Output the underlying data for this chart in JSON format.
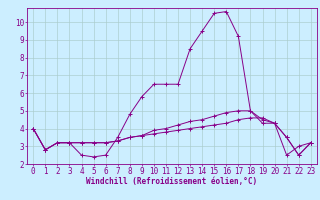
{
  "title": "",
  "xlabel": "Windchill (Refroidissement éolien,°C)",
  "ylabel": "",
  "bg_color": "#cceeff",
  "line_color": "#880088",
  "grid_color": "#aaddcc",
  "xlim": [
    -0.5,
    23.5
  ],
  "ylim": [
    2.0,
    10.8
  ],
  "yticks": [
    2,
    3,
    4,
    5,
    6,
    7,
    8,
    9,
    10
  ],
  "xticks": [
    0,
    1,
    2,
    3,
    4,
    5,
    6,
    7,
    8,
    9,
    10,
    11,
    12,
    13,
    14,
    15,
    16,
    17,
    18,
    19,
    20,
    21,
    22,
    23
  ],
  "series1_x": [
    0,
    1,
    2,
    3,
    4,
    5,
    6,
    7,
    8,
    9,
    10,
    11,
    12,
    13,
    14,
    15,
    16,
    17,
    18,
    19,
    20,
    21,
    22,
    23
  ],
  "series1_y": [
    4.0,
    2.8,
    3.2,
    3.2,
    2.5,
    2.4,
    2.5,
    3.5,
    4.8,
    5.8,
    6.5,
    6.5,
    6.5,
    8.5,
    9.5,
    10.5,
    10.6,
    9.2,
    5.0,
    4.3,
    4.3,
    2.5,
    3.0,
    3.2
  ],
  "series2_x": [
    0,
    1,
    2,
    3,
    4,
    5,
    6,
    7,
    8,
    9,
    10,
    11,
    12,
    13,
    14,
    15,
    16,
    17,
    18,
    19,
    20,
    21,
    22,
    23
  ],
  "series2_y": [
    4.0,
    2.8,
    3.2,
    3.2,
    3.2,
    3.2,
    3.2,
    3.3,
    3.5,
    3.6,
    3.7,
    3.8,
    3.9,
    4.0,
    4.1,
    4.2,
    4.3,
    4.5,
    4.6,
    4.6,
    4.3,
    3.5,
    2.5,
    3.2
  ],
  "series3_x": [
    0,
    1,
    2,
    3,
    4,
    5,
    6,
    7,
    8,
    9,
    10,
    11,
    12,
    13,
    14,
    15,
    16,
    17,
    18,
    19,
    20,
    21,
    22,
    23
  ],
  "series3_y": [
    4.0,
    2.8,
    3.2,
    3.2,
    3.2,
    3.2,
    3.2,
    3.3,
    3.5,
    3.6,
    3.9,
    4.0,
    4.2,
    4.4,
    4.5,
    4.7,
    4.9,
    5.0,
    5.0,
    4.5,
    4.3,
    3.5,
    2.5,
    3.2
  ],
  "tick_fontsize": 5.5,
  "xlabel_fontsize": 5.5
}
